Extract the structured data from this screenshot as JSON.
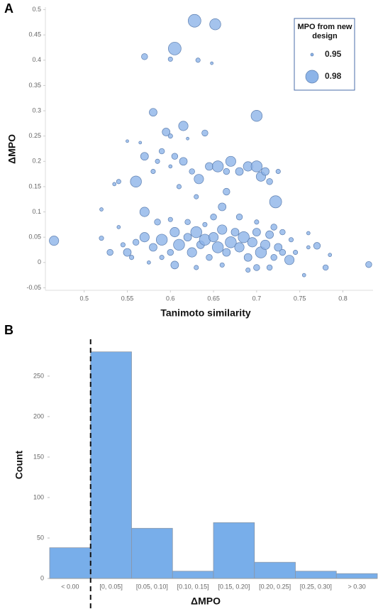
{
  "chart_data": [
    {
      "type": "scatter",
      "panel_label": "A",
      "x_label": "Tanimoto similarity",
      "y_label": "ΔMPO",
      "color": "#8db4e8",
      "xlim": [
        0.455,
        0.835
      ],
      "ylim": [
        -0.055,
        0.505
      ],
      "xticks": [
        0.5,
        0.55,
        0.6,
        0.65,
        0.7,
        0.75,
        0.8
      ],
      "yticks": [
        -0.05,
        0,
        0.05,
        0.1,
        0.15,
        0.2,
        0.25,
        0.3,
        0.35,
        0.4,
        0.45,
        0.5
      ],
      "legend": {
        "title": "MPO from new design",
        "sizes": [
          0.95,
          0.98
        ]
      },
      "x": [
        0.628,
        0.652,
        0.57,
        0.605,
        0.6,
        0.632,
        0.648,
        0.58,
        0.7,
        0.615,
        0.595,
        0.64,
        0.6,
        0.62,
        0.565,
        0.55,
        0.56,
        0.54,
        0.535,
        0.57,
        0.585,
        0.59,
        0.605,
        0.615,
        0.625,
        0.633,
        0.645,
        0.655,
        0.665,
        0.67,
        0.68,
        0.69,
        0.7,
        0.705,
        0.71,
        0.715,
        0.725,
        0.722,
        0.665,
        0.63,
        0.61,
        0.6,
        0.58,
        0.52,
        0.57,
        0.585,
        0.6,
        0.66,
        0.68,
        0.54,
        0.76,
        0.465,
        0.52,
        0.53,
        0.545,
        0.55,
        0.56,
        0.57,
        0.58,
        0.59,
        0.6,
        0.605,
        0.61,
        0.62,
        0.625,
        0.63,
        0.635,
        0.64,
        0.645,
        0.65,
        0.655,
        0.66,
        0.665,
        0.67,
        0.675,
        0.68,
        0.685,
        0.69,
        0.695,
        0.7,
        0.705,
        0.71,
        0.715,
        0.72,
        0.725,
        0.73,
        0.738,
        0.745,
        0.76,
        0.77,
        0.78,
        0.785,
        0.83,
        0.605,
        0.63,
        0.66,
        0.69,
        0.7,
        0.715,
        0.755,
        0.62,
        0.64,
        0.65,
        0.7,
        0.72,
        0.74,
        0.73,
        0.59,
        0.575,
        0.555
      ],
      "values": [
        0.478,
        0.471,
        0.407,
        0.423,
        0.402,
        0.4,
        0.394,
        0.297,
        0.29,
        0.27,
        0.258,
        0.256,
        0.25,
        0.245,
        0.237,
        0.24,
        0.16,
        0.16,
        0.155,
        0.21,
        0.2,
        0.22,
        0.21,
        0.2,
        0.18,
        0.165,
        0.19,
        0.19,
        0.18,
        0.2,
        0.18,
        0.19,
        0.19,
        0.17,
        0.18,
        0.16,
        0.18,
        0.12,
        0.14,
        0.13,
        0.15,
        0.19,
        0.18,
        0.105,
        0.1,
        0.08,
        0.085,
        0.11,
        0.09,
        0.07,
        0.058,
        0.043,
        0.048,
        0.02,
        0.035,
        0.02,
        0.04,
        0.05,
        0.03,
        0.045,
        0.02,
        0.06,
        0.035,
        0.05,
        0.02,
        0.06,
        0.035,
        0.045,
        0.01,
        0.05,
        0.03,
        0.065,
        0.02,
        0.04,
        0.06,
        0.03,
        0.05,
        0.01,
        0.04,
        0.06,
        0.02,
        0.035,
        0.055,
        0.01,
        0.03,
        0.02,
        0.005,
        0.02,
        0.03,
        0.033,
        -0.01,
        0.015,
        -0.004,
        -0.005,
        -0.01,
        -0.005,
        -0.015,
        -0.01,
        -0.01,
        -0.025,
        0.08,
        0.075,
        0.09,
        0.08,
        0.07,
        0.045,
        0.06,
        0.01,
        0,
        0.01
      ],
      "sizes": [
        0.98,
        0.975,
        0.96,
        0.98,
        0.955,
        0.955,
        0.95,
        0.965,
        0.975,
        0.97,
        0.965,
        0.96,
        0.955,
        0.95,
        0.95,
        0.95,
        0.975,
        0.955,
        0.952,
        0.965,
        0.955,
        0.958,
        0.96,
        0.965,
        0.958,
        0.97,
        0.965,
        0.975,
        0.96,
        0.972,
        0.965,
        0.97,
        0.975,
        0.97,
        0.965,
        0.96,
        0.955,
        0.978,
        0.962,
        0.955,
        0.955,
        0.952,
        0.955,
        0.952,
        0.97,
        0.96,
        0.955,
        0.965,
        0.96,
        0.952,
        0.952,
        0.97,
        0.955,
        0.96,
        0.955,
        0.965,
        0.96,
        0.97,
        0.965,
        0.975,
        0.96,
        0.97,
        0.975,
        0.965,
        0.97,
        0.975,
        0.965,
        0.975,
        0.96,
        0.97,
        0.975,
        0.97,
        0.965,
        0.975,
        0.965,
        0.97,
        0.975,
        0.965,
        0.97,
        0.965,
        0.975,
        0.97,
        0.965,
        0.96,
        0.965,
        0.96,
        0.97,
        0.955,
        0.952,
        0.962,
        0.958,
        0.952,
        0.96,
        0.965,
        0.955,
        0.955,
        0.955,
        0.96,
        0.958,
        0.952,
        0.958,
        0.955,
        0.96,
        0.955,
        0.96,
        0.955,
        0.958,
        0.955,
        0.952,
        0.955
      ]
    },
    {
      "type": "bar",
      "panel_label": "B",
      "x_label": "ΔMPO",
      "y_label": "Count",
      "color": "#78aeea",
      "categories": [
        "< 0.00",
        "[0, 0.05]",
        "[0.05, 0.10]",
        "[0.10, 0.15]",
        "[0.15, 0.20]",
        "[0.20, 0.25]",
        "[0.25, 0.30]",
        "> 0.30"
      ],
      "values": [
        38,
        280,
        62,
        9,
        69,
        20,
        9,
        6
      ],
      "ylim": [
        0,
        285
      ],
      "yticks": [
        0,
        50,
        100,
        150,
        200,
        250
      ]
    }
  ]
}
